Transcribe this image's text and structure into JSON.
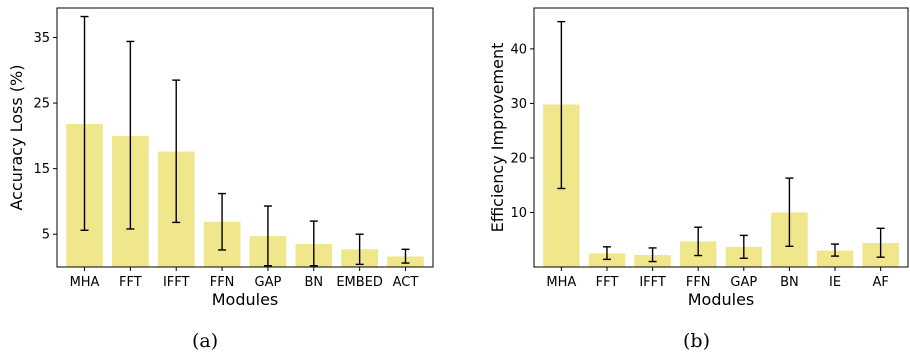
{
  "chart_data": [
    {
      "type": "bar",
      "xlabel": "Modules",
      "ylabel": "Accuracy Loss (%)",
      "ylim": [
        0,
        39.5
      ],
      "yticks": [
        5,
        15,
        25,
        35
      ],
      "grid": false,
      "bar_color": "#f0e68c",
      "error_color": "#000000",
      "categories": [
        "MHA",
        "FFT",
        "IFFT",
        "FFN",
        "GAP",
        "BN",
        "EMBED",
        "ACT"
      ],
      "values": [
        21.8,
        20.0,
        17.6,
        6.9,
        4.7,
        3.5,
        2.7,
        1.6
      ],
      "error_low": [
        5.6,
        5.8,
        6.8,
        2.6,
        0.2,
        0.2,
        0.4,
        0.6
      ],
      "error_high": [
        38.2,
        34.4,
        28.5,
        11.2,
        9.3,
        7.0,
        5.0,
        2.7
      ],
      "caption": "(a)"
    },
    {
      "type": "bar",
      "xlabel": "Modules",
      "ylabel": "Efficiency Improvement",
      "ylim": [
        0,
        47.5
      ],
      "yticks": [
        10,
        20,
        30,
        40
      ],
      "grid": false,
      "bar_color": "#f0e68c",
      "error_color": "#000000",
      "categories": [
        "MHA",
        "FFT",
        "IFFT",
        "FFN",
        "GAP",
        "BN",
        "IE",
        "AF"
      ],
      "values": [
        29.8,
        2.5,
        2.2,
        4.7,
        3.7,
        10.0,
        3.0,
        4.4
      ],
      "error_low": [
        14.4,
        1.4,
        1.0,
        2.1,
        1.6,
        3.8,
        2.0,
        1.8
      ],
      "error_high": [
        45.0,
        3.7,
        3.5,
        7.3,
        5.8,
        16.3,
        4.2,
        7.1
      ],
      "caption": "(b)"
    }
  ]
}
